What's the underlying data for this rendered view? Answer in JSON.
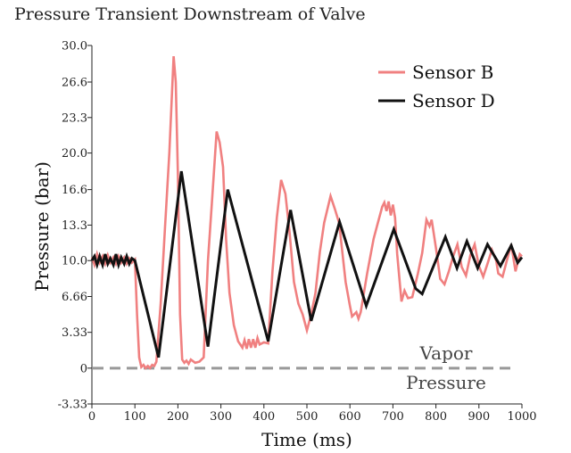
{
  "chart_data": {
    "type": "line",
    "title": "Pressure Transient Downstream of Valve",
    "xlabel": "Time (ms)",
    "ylabel": "Pressure (bar)",
    "xlim": [
      0,
      1000
    ],
    "ylim": [
      -3.33,
      30.0
    ],
    "xticks": [
      "0",
      "100",
      "200",
      "300",
      "400",
      "500",
      "600",
      "700",
      "800",
      "900",
      "1000"
    ],
    "yticks": [
      {
        "value": 30.0,
        "label": "30.0"
      },
      {
        "value": 26.6,
        "label": "26.6"
      },
      {
        "value": 23.3,
        "label": "23.3"
      },
      {
        "value": 20.0,
        "label": "20.0"
      },
      {
        "value": 16.6,
        "label": "16.6"
      },
      {
        "value": 13.3,
        "label": "13.3"
      },
      {
        "value": 10.0,
        "label": "10.0"
      },
      {
        "value": 6.66,
        "label": "6.66"
      },
      {
        "value": 3.33,
        "label": "3.33"
      },
      {
        "value": 0,
        "label": "0"
      },
      {
        "value": -3.33,
        "label": "-3.33"
      }
    ],
    "grid": false,
    "legend_position": "top-right",
    "reference_line": {
      "y": 0,
      "color": "#999999",
      "style": "dashed"
    },
    "annotation_lines": [
      "Vapor",
      "Pressure"
    ],
    "series": [
      {
        "name": "Sensor B",
        "color": "#f08080",
        "points": [
          [
            0,
            10.3
          ],
          [
            6,
            9.6
          ],
          [
            12,
            10.6
          ],
          [
            18,
            9.8
          ],
          [
            25,
            10.4
          ],
          [
            31,
            9.7
          ],
          [
            37,
            10.5
          ],
          [
            43,
            9.8
          ],
          [
            50,
            10.3
          ],
          [
            56,
            9.7
          ],
          [
            62,
            10.4
          ],
          [
            68,
            9.8
          ],
          [
            75,
            10.3
          ],
          [
            81,
            9.7
          ],
          [
            87,
            10.2
          ],
          [
            93,
            9.8
          ],
          [
            100,
            10.1
          ],
          [
            105,
            5
          ],
          [
            110,
            1
          ],
          [
            115,
            0.1
          ],
          [
            120,
            0.3
          ],
          [
            125,
            0
          ],
          [
            130,
            0.2
          ],
          [
            135,
            0
          ],
          [
            140,
            0.3
          ],
          [
            145,
            0.2
          ],
          [
            150,
            0.6
          ],
          [
            160,
            6
          ],
          [
            170,
            13
          ],
          [
            180,
            20
          ],
          [
            190,
            29
          ],
          [
            195,
            26.6
          ],
          [
            200,
            18
          ],
          [
            205,
            5
          ],
          [
            210,
            0.8
          ],
          [
            215,
            0.5
          ],
          [
            220,
            0.7
          ],
          [
            225,
            0.4
          ],
          [
            230,
            0.8
          ],
          [
            240,
            0.5
          ],
          [
            250,
            0.6
          ],
          [
            260,
            1
          ],
          [
            270,
            10
          ],
          [
            280,
            16
          ],
          [
            290,
            22
          ],
          [
            297,
            21
          ],
          [
            305,
            18.7
          ],
          [
            312,
            12
          ],
          [
            320,
            7
          ],
          [
            330,
            4
          ],
          [
            340,
            2.5
          ],
          [
            350,
            1.9
          ],
          [
            355,
            2.6
          ],
          [
            360,
            1.8
          ],
          [
            365,
            2.7
          ],
          [
            370,
            1.9
          ],
          [
            375,
            2.7
          ],
          [
            380,
            1.9
          ],
          [
            385,
            2.8
          ],
          [
            390,
            2.2
          ],
          [
            400,
            2.4
          ],
          [
            410,
            2.3
          ],
          [
            420,
            9
          ],
          [
            430,
            14
          ],
          [
            440,
            17.5
          ],
          [
            450,
            16.2
          ],
          [
            460,
            12.5
          ],
          [
            470,
            8
          ],
          [
            480,
            6
          ],
          [
            490,
            5
          ],
          [
            500,
            3.5
          ],
          [
            510,
            5
          ],
          [
            520,
            7
          ],
          [
            530,
            10.8
          ],
          [
            540,
            13.5
          ],
          [
            555,
            16
          ],
          [
            565,
            14.8
          ],
          [
            575,
            13.5
          ],
          [
            590,
            8
          ],
          [
            600,
            5.8
          ],
          [
            605,
            4.8
          ],
          [
            615,
            5.2
          ],
          [
            620,
            4.6
          ],
          [
            625,
            5.2
          ],
          [
            640,
            8.8
          ],
          [
            655,
            12
          ],
          [
            665,
            13.5
          ],
          [
            675,
            15
          ],
          [
            680,
            15.4
          ],
          [
            685,
            14.6
          ],
          [
            690,
            15.5
          ],
          [
            695,
            14.2
          ],
          [
            700,
            15.2
          ],
          [
            705,
            14
          ],
          [
            710,
            10.6
          ],
          [
            720,
            6.2
          ],
          [
            727,
            7.2
          ],
          [
            735,
            6.5
          ],
          [
            745,
            6.6
          ],
          [
            758,
            8.8
          ],
          [
            768,
            10.7
          ],
          [
            778,
            13.8
          ],
          [
            785,
            13.2
          ],
          [
            790,
            13.8
          ],
          [
            800,
            11.2
          ],
          [
            810,
            8.3
          ],
          [
            820,
            7.8
          ],
          [
            830,
            9
          ],
          [
            840,
            10.4
          ],
          [
            850,
            11.5
          ],
          [
            860,
            9.4
          ],
          [
            870,
            8.6
          ],
          [
            880,
            10.5
          ],
          [
            890,
            11.5
          ],
          [
            900,
            9.5
          ],
          [
            910,
            8.5
          ],
          [
            920,
            9.7
          ],
          [
            930,
            11
          ],
          [
            940,
            10
          ],
          [
            945,
            8.8
          ],
          [
            955,
            8.5
          ],
          [
            965,
            10
          ],
          [
            975,
            11.5
          ],
          [
            985,
            9
          ],
          [
            995,
            10.6
          ],
          [
            1000,
            10.4
          ]
        ]
      },
      {
        "name": "Sensor D",
        "color": "#111111",
        "points": [
          [
            0,
            10
          ],
          [
            6,
            10.4
          ],
          [
            12,
            9.6
          ],
          [
            18,
            10.4
          ],
          [
            25,
            9.6
          ],
          [
            31,
            10.6
          ],
          [
            37,
            9.7
          ],
          [
            43,
            10.2
          ],
          [
            50,
            9.6
          ],
          [
            56,
            10.6
          ],
          [
            62,
            9.6
          ],
          [
            68,
            10.3
          ],
          [
            75,
            9.7
          ],
          [
            81,
            10.4
          ],
          [
            87,
            9.7
          ],
          [
            93,
            10.2
          ],
          [
            100,
            10
          ],
          [
            155,
            1
          ],
          [
            208,
            18.3
          ],
          [
            270,
            2
          ],
          [
            316,
            16.6
          ],
          [
            410,
            2.5
          ],
          [
            462,
            14.7
          ],
          [
            510,
            4.4
          ],
          [
            576,
            13.6
          ],
          [
            638,
            5.8
          ],
          [
            702,
            12.9
          ],
          [
            753,
            7.4
          ],
          [
            768,
            6.9
          ],
          [
            822,
            12.2
          ],
          [
            849,
            9.3
          ],
          [
            872,
            11.8
          ],
          [
            897,
            9.3
          ],
          [
            920,
            11.5
          ],
          [
            950,
            9.5
          ],
          [
            975,
            11.4
          ],
          [
            990,
            9.8
          ],
          [
            1000,
            10.3
          ]
        ]
      }
    ]
  }
}
